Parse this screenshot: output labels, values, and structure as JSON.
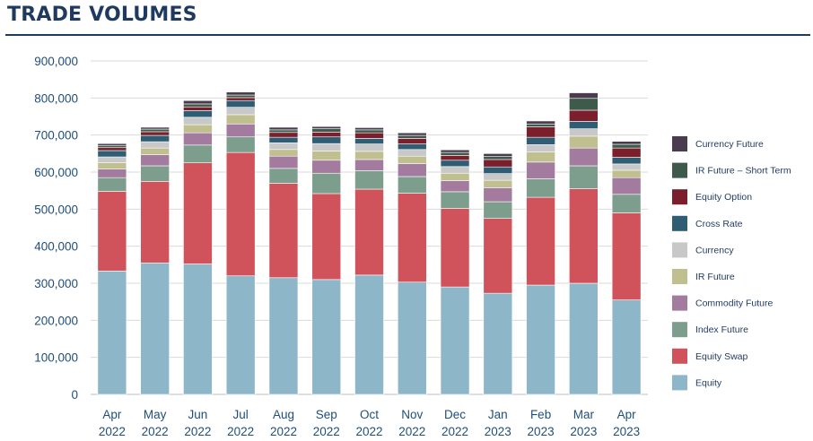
{
  "title": "TRADE VOLUMES",
  "chart_data": {
    "type": "bar",
    "stacked": true,
    "title": "TRADE VOLUMES",
    "xlabel": "",
    "ylabel": "",
    "ylim": [
      0,
      900000
    ],
    "yticks": [
      0,
      100000,
      200000,
      300000,
      400000,
      500000,
      600000,
      700000,
      800000,
      900000
    ],
    "ytick_labels": [
      "0",
      "100,000",
      "200,000",
      "300,000",
      "400,000",
      "500,000",
      "600,000",
      "700,000",
      "800,000",
      "900,000"
    ],
    "grid": true,
    "legend_position": "right",
    "categories": [
      {
        "month": "Apr",
        "year": "2022"
      },
      {
        "month": "May",
        "year": "2022"
      },
      {
        "month": "Jun",
        "year": "2022"
      },
      {
        "month": "Jul",
        "year": "2022"
      },
      {
        "month": "Aug",
        "year": "2022"
      },
      {
        "month": "Sep",
        "year": "2022"
      },
      {
        "month": "Oct",
        "year": "2022"
      },
      {
        "month": "Nov",
        "year": "2022"
      },
      {
        "month": "Dec",
        "year": "2022"
      },
      {
        "month": "Jan",
        "year": "2023"
      },
      {
        "month": "Feb",
        "year": "2023"
      },
      {
        "month": "Mar",
        "year": "2023"
      },
      {
        "month": "Apr",
        "year": "2023"
      }
    ],
    "series": [
      {
        "name": "Equity",
        "color": "#8db6c9",
        "values": [
          333000,
          355000,
          352000,
          320000,
          315000,
          310000,
          322000,
          303000,
          290000,
          273000,
          295000,
          300000,
          255000
        ]
      },
      {
        "name": "Equity Swap",
        "color": "#d0525a",
        "values": [
          215000,
          220000,
          273000,
          333000,
          255000,
          232000,
          232000,
          240000,
          212000,
          202000,
          237000,
          255000,
          235000
        ]
      },
      {
        "name": "Index Future",
        "color": "#7d9e8d",
        "values": [
          37000,
          42000,
          48000,
          42000,
          40000,
          55000,
          50000,
          45000,
          45000,
          45000,
          50000,
          62000,
          50000
        ]
      },
      {
        "name": "Commodity Future",
        "color": "#a27b9f",
        "values": [
          23000,
          30000,
          33000,
          35000,
          33000,
          35000,
          30000,
          35000,
          30000,
          38000,
          45000,
          48000,
          45000
        ]
      },
      {
        "name": "IR Future",
        "color": "#bfbf8f",
        "values": [
          17000,
          18000,
          22000,
          25000,
          18000,
          25000,
          22000,
          20000,
          20000,
          20000,
          27000,
          32000,
          20000
        ]
      },
      {
        "name": "Currency",
        "color": "#c8c8c8",
        "values": [
          16000,
          17000,
          20000,
          20000,
          18000,
          20000,
          20000,
          18000,
          18000,
          18000,
          20000,
          20000,
          17000
        ]
      },
      {
        "name": "Cross Rate",
        "color": "#2f5d73",
        "values": [
          17000,
          17000,
          18000,
          18000,
          15000,
          18000,
          15000,
          15000,
          17000,
          18000,
          20000,
          20000,
          18000
        ]
      },
      {
        "name": "Equity Option",
        "color": "#7a1f2b",
        "values": [
          8000,
          10000,
          10000,
          8000,
          13000,
          13000,
          15000,
          15000,
          13000,
          20000,
          28000,
          30000,
          25000
        ]
      },
      {
        "name": "IR Future – Short Term",
        "color": "#3d5a4a",
        "values": [
          6000,
          7000,
          8000,
          7000,
          7000,
          9000,
          8000,
          8000,
          8000,
          8000,
          8000,
          32000,
          10000
        ]
      },
      {
        "name": "Currency Future",
        "color": "#4b3b4f",
        "values": [
          5000,
          5000,
          9000,
          8000,
          7000,
          6000,
          6000,
          7000,
          7000,
          8000,
          8000,
          15000,
          8000
        ]
      }
    ]
  }
}
